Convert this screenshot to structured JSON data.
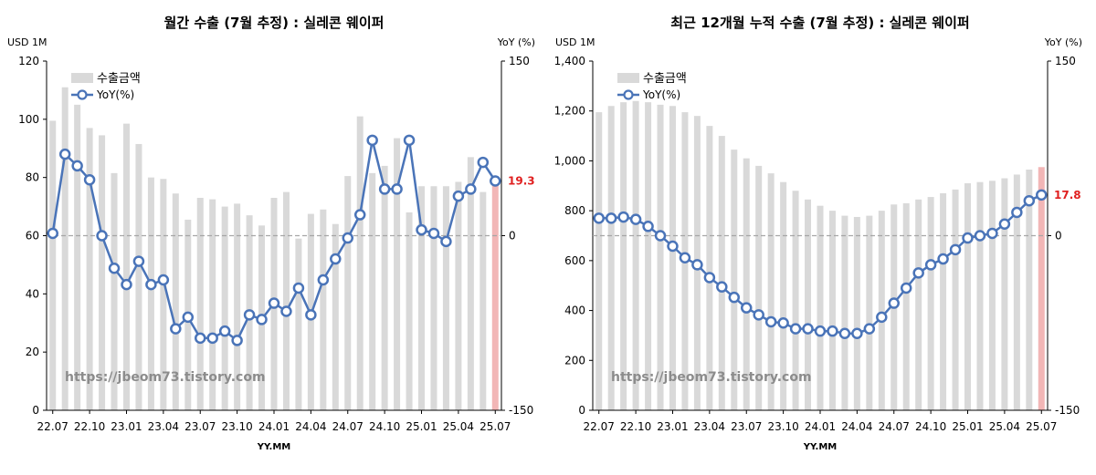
{
  "chart_data": [
    {
      "type": "bar+line",
      "title": "월간 수출 (7월 추정) : 실레콘 웨이퍼",
      "left_unit": "USD 1M",
      "right_unit": "YoY (%)",
      "xlabel": "YY.MM",
      "ylim_left": [
        0,
        120
      ],
      "yticks_left": [
        "0",
        "20",
        "40",
        "60",
        "80",
        "100",
        "120"
      ],
      "ylim_right": [
        -150,
        150
      ],
      "yticks_right": [
        "-150",
        "0",
        "150"
      ],
      "xtick_labels": [
        "22.07",
        "22.10",
        "23.01",
        "23.04",
        "23.07",
        "23.10",
        "24.01",
        "24.04",
        "24.07",
        "24.10",
        "25.01",
        "25.04",
        "25.07"
      ],
      "x": [
        "22.07",
        "22.08",
        "22.09",
        "22.10",
        "22.11",
        "22.12",
        "23.01",
        "23.02",
        "23.03",
        "23.04",
        "23.05",
        "23.06",
        "23.07",
        "23.08",
        "23.09",
        "23.10",
        "23.11",
        "23.12",
        "24.01",
        "24.02",
        "24.03",
        "24.04",
        "24.05",
        "24.06",
        "24.07",
        "24.08",
        "24.09",
        "24.10",
        "24.11",
        "24.12",
        "25.01",
        "25.02",
        "25.03",
        "25.04",
        "25.05",
        "25.06",
        "25.07"
      ],
      "series": [
        {
          "name": "수출금액",
          "kind": "bar",
          "values": [
            99.5,
            111,
            105,
            97,
            94.5,
            81.5,
            98.5,
            91.5,
            80,
            79.5,
            74.5,
            65.5,
            73,
            72.5,
            70,
            71,
            67,
            63.5,
            73,
            75,
            59,
            67.5,
            69,
            64,
            80.5,
            101,
            81.5,
            84,
            93.5,
            68,
            77,
            77,
            77,
            78.5,
            87,
            75,
            77.5
          ]
        },
        {
          "name": "YoY(%)",
          "kind": "line",
          "values": [
            2,
            70,
            60,
            48,
            0,
            -28,
            -42,
            -22,
            -42,
            -38,
            -80,
            -70,
            -88,
            -88,
            -82,
            -90,
            -68,
            -72,
            -58,
            -65,
            -45,
            -68,
            -38,
            -20,
            -2,
            18,
            82,
            40,
            40,
            82,
            5,
            2,
            -5,
            34,
            40,
            63,
            47
          ]
        }
      ],
      "highlight_bar": "25.07",
      "last_label": "19.3",
      "legend_position": "top-left",
      "watermark": "https://jbeom73.tistory.com"
    },
    {
      "type": "bar+line",
      "title": "최근 12개월 누적 수출 (7월 추정) : 실레콘 웨이퍼",
      "left_unit": "USD 1M",
      "right_unit": "YoY (%)",
      "xlabel": "YY.MM",
      "ylim_left": [
        0,
        1400
      ],
      "yticks_left": [
        "0",
        "200",
        "400",
        "600",
        "800",
        "1,000",
        "1,200",
        "1,400"
      ],
      "ylim_right": [
        -150,
        150
      ],
      "yticks_right": [
        "-150",
        "0",
        "150"
      ],
      "xtick_labels": [
        "22.07",
        "22.10",
        "23.01",
        "23.04",
        "23.07",
        "23.10",
        "24.01",
        "24.04",
        "24.07",
        "24.10",
        "25.01",
        "25.04",
        "25.07"
      ],
      "x": [
        "22.07",
        "22.08",
        "22.09",
        "22.10",
        "22.11",
        "22.12",
        "23.01",
        "23.02",
        "23.03",
        "23.04",
        "23.05",
        "23.06",
        "23.07",
        "23.08",
        "23.09",
        "23.10",
        "23.11",
        "23.12",
        "24.01",
        "24.02",
        "24.03",
        "24.04",
        "24.05",
        "24.06",
        "24.07",
        "24.08",
        "24.09",
        "24.10",
        "24.11",
        "24.12",
        "25.01",
        "25.02",
        "25.03",
        "25.04",
        "25.05",
        "25.06",
        "25.07"
      ],
      "series": [
        {
          "name": "수출금액",
          "kind": "bar",
          "values": [
            1195,
            1220,
            1235,
            1240,
            1235,
            1225,
            1220,
            1195,
            1180,
            1140,
            1100,
            1045,
            1010,
            980,
            950,
            915,
            880,
            845,
            820,
            800,
            780,
            775,
            780,
            800,
            825,
            830,
            845,
            855,
            870,
            885,
            910,
            915,
            920,
            930,
            945,
            965,
            975
          ]
        },
        {
          "name": "YoY(%)",
          "kind": "line",
          "values": [
            15,
            15,
            16,
            14,
            8,
            0,
            -9,
            -19,
            -25,
            -36,
            -44,
            -53,
            -62,
            -68,
            -74,
            -75,
            -80,
            -80,
            -82,
            -82,
            -84,
            -84,
            -80,
            -70,
            -58,
            -45,
            -32,
            -25,
            -20,
            -12,
            -2,
            0,
            2,
            10,
            20,
            30,
            35
          ]
        }
      ],
      "highlight_bar": "25.07",
      "last_label": "17.8",
      "legend_position": "top-left",
      "watermark": "https://jbeom73.tistory.com"
    }
  ],
  "colors": {
    "bar": "#d9d9d9",
    "bar_highlight": "#f2b6b6",
    "line": "#4a74b8",
    "marker_fill": "#ffffff",
    "zero_line": "#a6a6a6",
    "last_label": "#e02020",
    "watermark": "#8c8c8c"
  }
}
